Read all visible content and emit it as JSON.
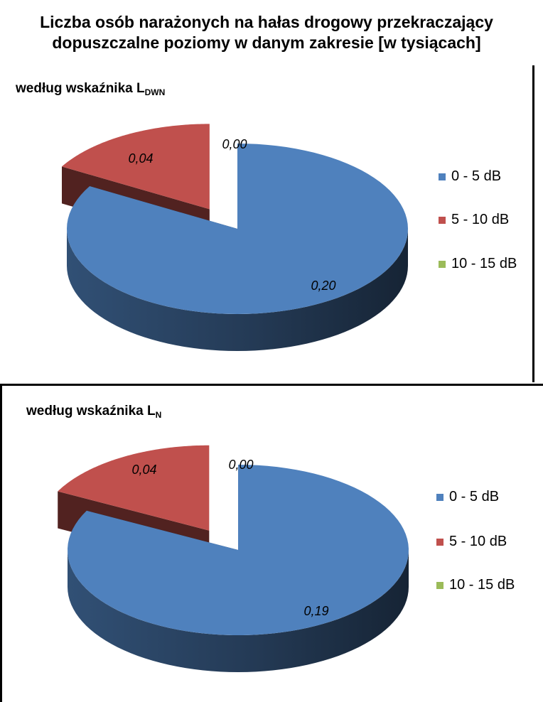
{
  "title_line1": "Liczba osób narażonych na hałas drogowy przekraczający",
  "title_line2": "dopuszczalne poziomy w danym zakresie [w tysiącach]",
  "colors": {
    "blue": "#4F81BD",
    "red": "#C0504D",
    "green": "#9BBB59"
  },
  "chart_data": [
    {
      "type": "pie",
      "subtitle_main": "według wskaźnika L",
      "subtitle_sub": "DWN",
      "slices": [
        {
          "label": "0 - 5 dB",
          "value": 0.2,
          "value_label": "0,20"
        },
        {
          "label": "5 - 10 dB",
          "value": 0.04,
          "value_label": "0,04"
        },
        {
          "label": "10 - 15 dB",
          "value": 0.0,
          "value_label": "0,00"
        }
      ],
      "legend_position": "right"
    },
    {
      "type": "pie",
      "subtitle_main": "według wskaźnika L",
      "subtitle_sub": "N",
      "slices": [
        {
          "label": "0 - 5 dB",
          "value": 0.19,
          "value_label": "0,19"
        },
        {
          "label": "5 - 10 dB",
          "value": 0.04,
          "value_label": "0,04"
        },
        {
          "label": "10 - 15 dB",
          "value": 0.0,
          "value_label": "0,00"
        }
      ],
      "legend_position": "right"
    }
  ]
}
